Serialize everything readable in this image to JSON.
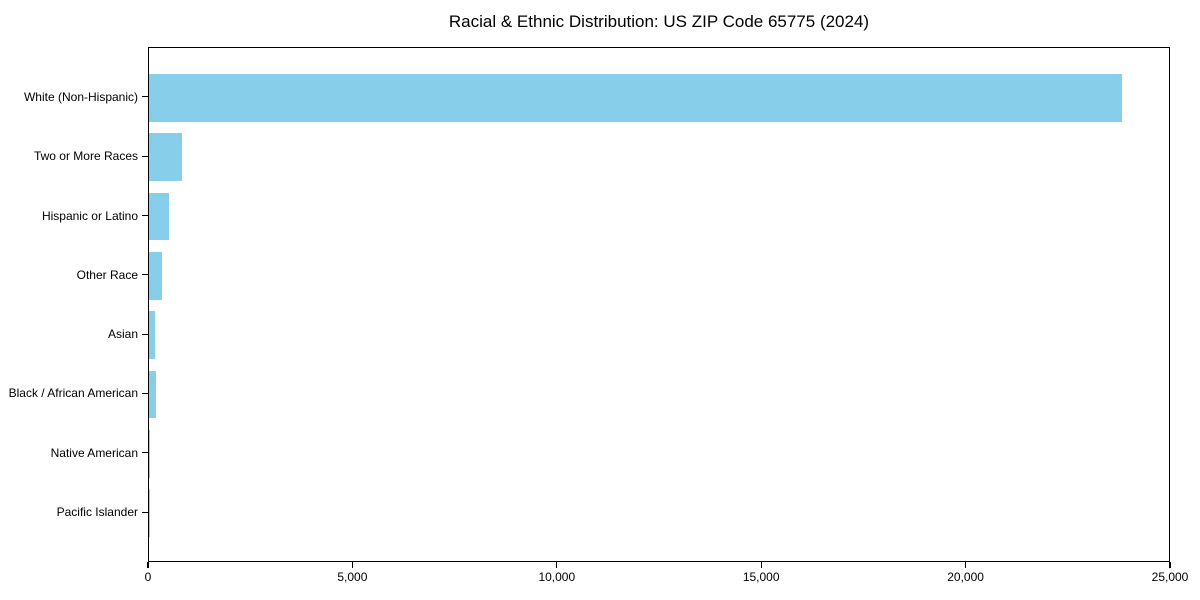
{
  "chart_data": {
    "type": "bar",
    "orientation": "horizontal",
    "title": "Racial & Ethnic Distribution: US ZIP Code 65775 (2024)",
    "categories": [
      "White (Non-Hispanic)",
      "Two or More Races",
      "Hispanic or Latino",
      "Other Race",
      "Asian",
      "Black / African American",
      "Native American",
      "Pacific Islander"
    ],
    "values": [
      23800,
      800,
      490,
      320,
      150,
      160,
      30,
      5
    ],
    "xlabel": "",
    "ylabel": "",
    "xlim": [
      0,
      25000
    ],
    "xticks": [
      0,
      5000,
      10000,
      15000,
      20000,
      25000
    ],
    "xtick_labels": [
      "0",
      "5,000",
      "10,000",
      "15,000",
      "20,000",
      "25,000"
    ],
    "bar_color": "#87CEEB",
    "axis_color": "#000000",
    "grid": false,
    "legend": "none"
  }
}
